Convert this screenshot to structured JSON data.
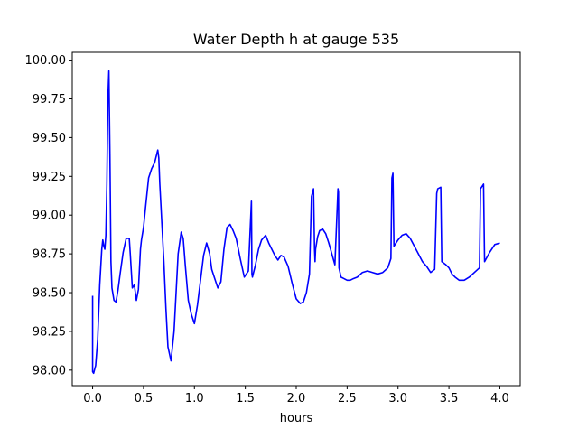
{
  "chart_data": {
    "type": "line",
    "title": "Water Depth h at gauge 535",
    "xlabel": "hours",
    "ylabel": "",
    "xlim": [
      -0.2,
      4.2
    ],
    "ylim": [
      97.9,
      100.05
    ],
    "xticks": [
      0.0,
      0.5,
      1.0,
      1.5,
      2.0,
      2.5,
      3.0,
      3.5,
      4.0
    ],
    "xtick_labels": [
      "0.0",
      "0.5",
      "1.0",
      "1.5",
      "2.0",
      "2.5",
      "3.0",
      "3.5",
      "4.0"
    ],
    "yticks": [
      98.0,
      98.25,
      98.5,
      98.75,
      99.0,
      99.25,
      99.5,
      99.75,
      100.0
    ],
    "ytick_labels": [
      "98.00",
      "98.25",
      "98.50",
      "98.75",
      "99.00",
      "99.25",
      "99.50",
      "99.75",
      "100.00"
    ],
    "grid": false,
    "series": [
      {
        "color": "#0000ff",
        "x": [
          0.0,
          0.0,
          0.01,
          0.03,
          0.05,
          0.07,
          0.09,
          0.1,
          0.11,
          0.12,
          0.13,
          0.14,
          0.15,
          0.16,
          0.17,
          0.18,
          0.19,
          0.21,
          0.23,
          0.25,
          0.27,
          0.3,
          0.33,
          0.36,
          0.37,
          0.39,
          0.41,
          0.43,
          0.45,
          0.47,
          0.48,
          0.5,
          0.52,
          0.55,
          0.58,
          0.61,
          0.64,
          0.65,
          0.66,
          0.7,
          0.72,
          0.74,
          0.77,
          0.8,
          0.84,
          0.87,
          0.89,
          0.91,
          0.94,
          0.97,
          1.0,
          1.03,
          1.06,
          1.09,
          1.12,
          1.15,
          1.17,
          1.2,
          1.23,
          1.26,
          1.29,
          1.32,
          1.35,
          1.38,
          1.41,
          1.45,
          1.49,
          1.53,
          1.56,
          1.565,
          1.57,
          1.6,
          1.63,
          1.66,
          1.7,
          1.73,
          1.76,
          1.79,
          1.82,
          1.85,
          1.88,
          1.92,
          1.96,
          2.0,
          2.04,
          2.07,
          2.1,
          2.13,
          2.15,
          2.17,
          2.18,
          2.185,
          2.19,
          2.21,
          2.23,
          2.26,
          2.29,
          2.32,
          2.35,
          2.38,
          2.41,
          2.415,
          2.42,
          2.44,
          2.47,
          2.5,
          2.53,
          2.56,
          2.6,
          2.65,
          2.7,
          2.75,
          2.8,
          2.85,
          2.9,
          2.93,
          2.94,
          2.95,
          2.96,
          3.0,
          3.04,
          3.08,
          3.12,
          3.16,
          3.2,
          3.24,
          3.28,
          3.32,
          3.36,
          3.38,
          3.39,
          3.42,
          3.43,
          3.47,
          3.5,
          3.53,
          3.56,
          3.6,
          3.65,
          3.7,
          3.75,
          3.8,
          3.81,
          3.84,
          3.85,
          3.9,
          3.95,
          4.0
        ],
        "y": [
          98.48,
          97.99,
          97.98,
          98.03,
          98.2,
          98.55,
          98.78,
          98.84,
          98.8,
          98.78,
          98.87,
          99.2,
          99.75,
          99.93,
          99.4,
          98.7,
          98.53,
          98.45,
          98.44,
          98.52,
          98.62,
          98.76,
          98.85,
          98.85,
          98.75,
          98.53,
          98.55,
          98.45,
          98.52,
          98.78,
          98.84,
          98.92,
          99.05,
          99.24,
          99.3,
          99.34,
          99.42,
          99.37,
          99.2,
          98.7,
          98.4,
          98.15,
          98.06,
          98.25,
          98.75,
          98.89,
          98.85,
          98.68,
          98.45,
          98.36,
          98.3,
          98.42,
          98.58,
          98.74,
          98.82,
          98.75,
          98.65,
          98.59,
          98.53,
          98.57,
          98.78,
          98.92,
          98.94,
          98.9,
          98.85,
          98.72,
          98.6,
          98.64,
          99.09,
          98.62,
          98.6,
          98.68,
          98.78,
          98.84,
          98.87,
          98.82,
          98.78,
          98.74,
          98.71,
          98.74,
          98.73,
          98.67,
          98.56,
          98.46,
          98.43,
          98.44,
          98.5,
          98.62,
          99.12,
          99.17,
          98.78,
          98.7,
          98.78,
          98.86,
          98.9,
          98.91,
          98.88,
          98.82,
          98.75,
          98.68,
          99.17,
          99.15,
          98.66,
          98.6,
          98.59,
          98.58,
          98.58,
          98.59,
          98.6,
          98.63,
          98.64,
          98.63,
          98.62,
          98.63,
          98.66,
          98.72,
          99.24,
          99.27,
          98.8,
          98.84,
          98.87,
          98.88,
          98.85,
          98.8,
          98.75,
          98.7,
          98.67,
          98.63,
          98.65,
          99.14,
          99.17,
          99.18,
          98.7,
          98.68,
          98.66,
          98.62,
          98.6,
          98.58,
          98.58,
          98.6,
          98.63,
          98.66,
          99.17,
          99.2,
          98.7,
          98.76,
          98.81,
          98.82
        ]
      }
    ]
  }
}
